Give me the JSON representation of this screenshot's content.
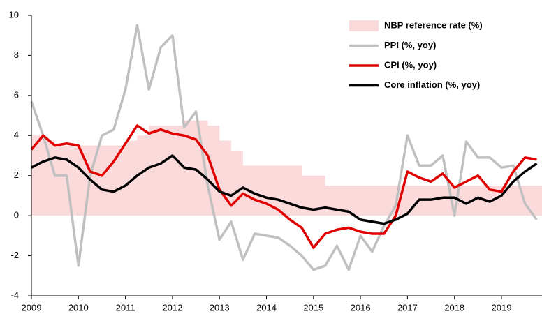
{
  "chart_data": {
    "type": "line",
    "x": [
      2009,
      2009.25,
      2009.5,
      2009.75,
      2010,
      2010.25,
      2010.5,
      2010.75,
      2011,
      2011.25,
      2011.5,
      2011.75,
      2012,
      2012.25,
      2012.5,
      2012.75,
      2013,
      2013.25,
      2013.5,
      2013.75,
      2014,
      2014.25,
      2014.5,
      2014.75,
      2015,
      2015.25,
      2015.5,
      2015.75,
      2016,
      2016.25,
      2016.5,
      2016.75,
      2017,
      2017.25,
      2017.5,
      2017.75,
      2018,
      2018.25,
      2018.5,
      2018.75,
      2019,
      2019.25,
      2019.5,
      2019.75
    ],
    "series": [
      {
        "name": "NBP reference rate (%)",
        "color": "#fadada",
        "style": "area",
        "values": [
          4.0,
          3.75,
          3.5,
          3.5,
          3.5,
          3.5,
          3.5,
          3.5,
          3.75,
          4.0,
          4.5,
          4.5,
          4.5,
          4.75,
          4.75,
          4.5,
          3.75,
          3.25,
          2.5,
          2.5,
          2.5,
          2.5,
          2.5,
          2.0,
          2.0,
          1.5,
          1.5,
          1.5,
          1.5,
          1.5,
          1.5,
          1.5,
          1.5,
          1.5,
          1.5,
          1.5,
          1.5,
          1.5,
          1.5,
          1.5,
          1.5,
          1.5,
          1.5,
          1.5
        ]
      },
      {
        "name": "PPI (%, yoy)",
        "color": "#c0c0c0",
        "style": "line",
        "values": [
          5.7,
          4.0,
          2.0,
          2.0,
          -2.5,
          2.0,
          4.0,
          4.3,
          6.3,
          9.5,
          6.3,
          8.4,
          9.0,
          4.4,
          5.2,
          1.5,
          -1.2,
          -0.3,
          -2.2,
          -0.9,
          -1.0,
          -1.1,
          -1.5,
          -2.0,
          -2.7,
          -2.5,
          -1.5,
          -2.7,
          -1.0,
          -1.8,
          -0.5,
          0.5,
          4.0,
          2.5,
          2.5,
          3.0,
          0.0,
          3.7,
          2.9,
          2.9,
          2.4,
          2.5,
          0.6,
          -0.2
        ]
      },
      {
        "name": "CPI (%, yoy)",
        "color": "#e00000",
        "style": "line",
        "values": [
          3.3,
          4.0,
          3.5,
          3.6,
          3.5,
          2.2,
          2.0,
          2.7,
          3.6,
          4.5,
          4.1,
          4.3,
          4.1,
          4.0,
          3.8,
          3.0,
          1.3,
          0.5,
          1.1,
          0.8,
          0.6,
          0.3,
          -0.2,
          -0.6,
          -1.6,
          -0.9,
          -0.7,
          -0.6,
          -0.8,
          -0.9,
          -0.9,
          0.0,
          2.2,
          1.9,
          1.7,
          2.1,
          1.4,
          1.7,
          2.0,
          1.3,
          1.2,
          2.2,
          2.9,
          2.8
        ]
      },
      {
        "name": "Core inflation (%, yoy)",
        "color": "#000000",
        "style": "line",
        "values": [
          2.4,
          2.7,
          2.9,
          2.8,
          2.4,
          1.8,
          1.3,
          1.2,
          1.5,
          2.0,
          2.4,
          2.6,
          3.0,
          2.4,
          2.3,
          1.8,
          1.2,
          1.0,
          1.4,
          1.1,
          0.9,
          0.8,
          0.6,
          0.4,
          0.3,
          0.4,
          0.3,
          0.2,
          -0.2,
          -0.3,
          -0.4,
          -0.2,
          0.1,
          0.8,
          0.8,
          0.9,
          0.9,
          0.6,
          0.9,
          0.7,
          1.0,
          1.7,
          2.2,
          2.6
        ]
      }
    ],
    "xlim": [
      2009,
      2019.85
    ],
    "xticks": [
      2009,
      2010,
      2011,
      2012,
      2013,
      2014,
      2015,
      2016,
      2017,
      2018,
      2019
    ],
    "ylim": [
      -4,
      10
    ],
    "yticks": [
      -4,
      -2,
      0,
      2,
      4,
      6,
      8,
      10
    ],
    "grid": false,
    "legend": "upper right"
  }
}
